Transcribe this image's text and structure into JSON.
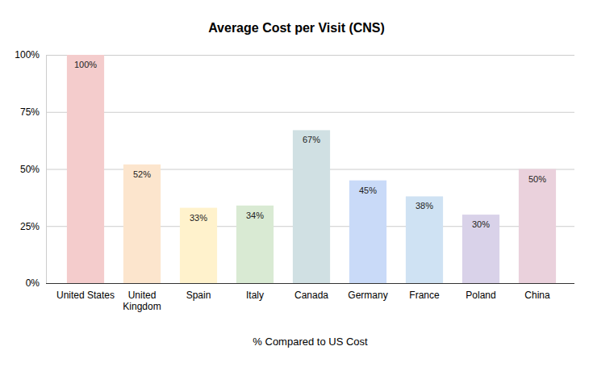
{
  "chart_data": {
    "type": "bar",
    "title": "Average Cost per Visit (CNS)",
    "x_label": "% Compared to US Cost",
    "categories": [
      "United States",
      "United Kingdom",
      "Spain",
      "Italy",
      "Canada",
      "Germany",
      "France",
      "Poland",
      "China"
    ],
    "values": [
      100,
      52,
      33,
      34,
      67,
      45,
      38,
      30,
      50
    ],
    "value_labels": [
      "100%",
      "52%",
      "33%",
      "34%",
      "67%",
      "45%",
      "38%",
      "30%",
      "50%"
    ],
    "colors": [
      "#f4cccc",
      "#fce5cd",
      "#fff2cc",
      "#d9ead3",
      "#d0e0e3",
      "#c9daf8",
      "#cfe2f3",
      "#d9d2e9",
      "#ead1dc"
    ],
    "ylim": [
      0,
      100
    ],
    "yticks": [
      {
        "value": 0,
        "label": "0%"
      },
      {
        "value": 25,
        "label": "25%"
      },
      {
        "value": 50,
        "label": "50%"
      },
      {
        "value": 75,
        "label": "75%"
      },
      {
        "value": 100,
        "label": "100%"
      }
    ],
    "grid": true,
    "data_labels": true
  }
}
